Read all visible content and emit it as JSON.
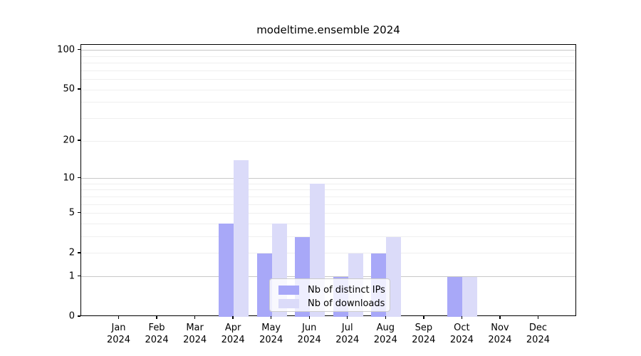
{
  "figure": {
    "title": "modeltime.ensemble 2024"
  },
  "chart_data": {
    "type": "bar",
    "title": "modeltime.ensemble 2024",
    "categories": [
      "Jan 2024",
      "Feb 2024",
      "Mar 2024",
      "Apr 2024",
      "May 2024",
      "Jun 2024",
      "Jul 2024",
      "Aug 2024",
      "Sep 2024",
      "Oct 2024",
      "Nov 2024",
      "Dec 2024"
    ],
    "series": [
      {
        "name": "Nb of distinct IPs",
        "color": "#a8a8f8",
        "values": [
          0,
          0,
          0,
          4,
          2,
          3,
          1,
          2,
          0,
          1,
          0,
          0
        ]
      },
      {
        "name": "Nb of downloads",
        "color": "#dbdbf9",
        "values": [
          0,
          0,
          0,
          14,
          4,
          9,
          2,
          3,
          0,
          1,
          0,
          0
        ]
      }
    ],
    "yscale": "log10(1+x)",
    "ylim": [
      0,
      110
    ],
    "yticks": [
      0,
      1,
      2,
      5,
      10,
      20,
      50,
      100
    ],
    "gridlines": {
      "major": [
        1,
        10,
        100
      ],
      "minor": [
        2,
        3,
        4,
        5,
        6,
        7,
        8,
        9,
        20,
        30,
        40,
        50,
        60,
        70,
        80,
        90
      ]
    },
    "legend_position": "lower center",
    "grid": true
  },
  "colors": {
    "bar_distinct_ips": "#a8a8f8",
    "bar_downloads": "#dbdbf9",
    "grid_major": "#c8c8c8",
    "grid_minor": "#efefef",
    "spine": "#000000",
    "text": "#000000",
    "legend_border": "#cccccc",
    "legend_background": "rgba(255,255,255,0.8)"
  }
}
